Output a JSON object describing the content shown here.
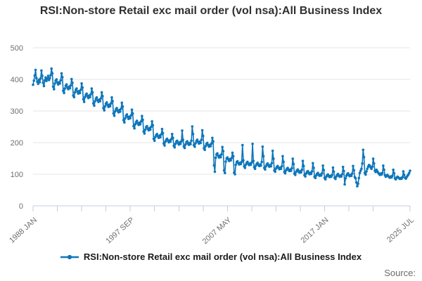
{
  "page": {
    "title": "RSI:Non-store Retail exc mail order (vol nsa):All Business Index",
    "source_label": "Source:"
  },
  "legend": {
    "label": "RSI:Non-store Retail exc mail order (vol nsa):All Business Index"
  },
  "colors": {
    "series": "#0e76ba",
    "grid": "#e4e4e4",
    "axis": "#c2cce2",
    "tick_text": "#6e6e6e",
    "title_text": "#303030",
    "legend_text": "#1a1a1a",
    "source_text": "#6b6b6b"
  },
  "chart_data": {
    "type": "line",
    "title": "RSI:Non-store Retail exc mail order (vol nsa):All Business Index",
    "xlabel": "",
    "ylabel": "",
    "ylim": [
      0,
      500
    ],
    "yticks": [
      0,
      100,
      200,
      300,
      400,
      500
    ],
    "grid": "horizontal",
    "legend_position": "bottom",
    "frequency": "monthly",
    "x_start": "1988 JAN",
    "x_end": "2025 JUL",
    "total_months": 450,
    "minor_tick_every_months": 29,
    "xticks": [
      {
        "label": "1988 JAN",
        "month": 0
      },
      {
        "label": "1997 SEP",
        "month": 116
      },
      {
        "label": "2007 MAY",
        "month": 232
      },
      {
        "label": "2017 JAN",
        "month": 348
      },
      {
        "label": "2025 JUL",
        "month": 450
      }
    ],
    "series": [
      {
        "name": "RSI:Non-store Retail exc mail order (vol nsa):All Business Index",
        "start_year": 1988,
        "start_month": 1,
        "values": [
          383,
          396,
          412,
          430,
          404,
          393,
          386,
          399,
          391,
          403,
          428,
          411,
          389,
          379,
          397,
          406,
          395,
          402,
          411,
          398,
          404,
          413,
          434,
          419,
          377,
          369,
          387,
          396,
          400,
          390,
          384,
          391,
          387,
          397,
          419,
          407,
          364,
          357,
          371,
          380,
          384,
          374,
          369,
          377,
          372,
          381,
          401,
          389,
          349,
          344,
          359,
          367,
          371,
          361,
          355,
          363,
          357,
          367,
          387,
          374,
          337,
          329,
          344,
          351,
          355,
          347,
          341,
          349,
          344,
          353,
          371,
          359,
          324,
          317,
          331,
          339,
          343,
          334,
          329,
          336,
          331,
          340,
          359,
          347,
          309,
          302,
          315,
          323,
          327,
          319,
          313,
          320,
          315,
          324,
          343,
          331,
          292,
          285,
          299,
          306,
          309,
          301,
          296,
          303,
          298,
          307,
          326,
          314,
          271,
          264,
          277,
          285,
          289,
          281,
          275,
          282,
          277,
          286,
          304,
          292,
          252,
          245,
          258,
          265,
          269,
          261,
          256,
          263,
          258,
          267,
          284,
          272,
          235,
          229,
          241,
          249,
          252,
          244,
          239,
          246,
          241,
          250,
          267,
          255,
          212,
          206,
          218,
          224,
          227,
          220,
          215,
          222,
          217,
          226,
          243,
          230,
          197,
          191,
          203,
          209,
          212,
          206,
          201,
          207,
          203,
          211,
          227,
          215,
          190,
          185,
          196,
          203,
          206,
          199,
          194,
          201,
          196,
          204,
          238,
          209,
          188,
          183,
          194,
          201,
          204,
          197,
          193,
          199,
          195,
          206,
          251,
          227,
          192,
          187,
          198,
          205,
          209,
          202,
          197,
          203,
          199,
          209,
          239,
          221,
          182,
          177,
          189,
          196,
          199,
          192,
          187,
          193,
          189,
          197,
          215,
          204,
          128,
          108,
          152,
          163,
          166,
          158,
          153,
          159,
          154,
          163,
          186,
          173,
          112,
          104,
          140,
          150,
          153,
          147,
          142,
          148,
          144,
          151,
          168,
          157,
          105,
          100,
          130,
          138,
          141,
          135,
          131,
          136,
          132,
          139,
          192,
          144,
          125,
          120,
          130,
          136,
          139,
          133,
          129,
          134,
          130,
          137,
          196,
          142,
          122,
          117,
          127,
          133,
          136,
          130,
          126,
          131,
          127,
          139,
          187,
          157,
          120,
          115,
          125,
          131,
          134,
          128,
          124,
          129,
          125,
          135,
          174,
          149,
          112,
          108,
          118,
          123,
          126,
          120,
          116,
          121,
          117,
          125,
          157,
          139,
          107,
          103,
          112,
          117,
          120,
          114,
          110,
          115,
          111,
          119,
          149,
          132,
          102,
          98,
          107,
          112,
          115,
          109,
          105,
          110,
          106,
          114,
          142,
          126,
          97,
          93,
          102,
          107,
          110,
          104,
          100,
          105,
          101,
          109,
          135,
          120,
          92,
          88,
          96,
          101,
          104,
          98,
          95,
          99,
          96,
          103,
          127,
          113,
          88,
          84,
          92,
          97,
          99,
          94,
          91,
          95,
          92,
          98,
          121,
          108,
          89,
          85,
          93,
          98,
          101,
          95,
          92,
          96,
          93,
          100,
          123,
          110,
          68,
          87,
          95,
          100,
          103,
          97,
          94,
          98,
          95,
          102,
          126,
          112,
          91,
          87,
          74,
          62,
          70,
          88,
          104,
          111,
          117,
          134,
          177,
          154,
          104,
          99,
          109,
          117,
          124,
          129,
          127,
          121,
          117,
          124,
          149,
          134,
          111,
          107,
          114,
          109,
          105,
          101,
          98,
          102,
          99,
          104,
          127,
          114,
          97,
          92,
          95,
          98,
          94,
          91,
          89,
          93,
          90,
          95,
          114,
          103,
          87,
          84,
          89,
          92,
          90,
          87,
          85,
          88,
          86,
          91,
          109,
          98,
          89,
          86,
          91,
          95,
          99,
          104,
          111
        ]
      }
    ]
  }
}
